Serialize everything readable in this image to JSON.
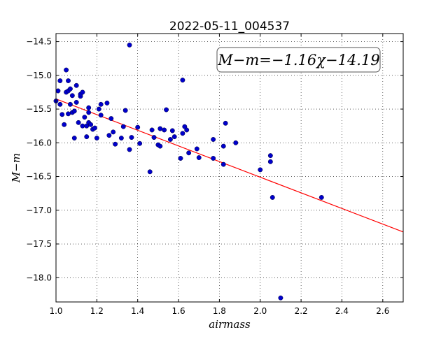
{
  "chart_data": {
    "type": "scatter",
    "title": "2022-05-11_004537",
    "xlabel": "airmass",
    "ylabel": "M−m",
    "xlim": [
      1.0,
      2.7
    ],
    "ylim": [
      -18.36,
      -14.38
    ],
    "y_inverted": true,
    "grid": true,
    "x_ticks": [
      1.0,
      1.2,
      1.4,
      1.6,
      1.8,
      2.0,
      2.2,
      2.4,
      2.6
    ],
    "x_tick_labels": [
      "1.0",
      "1.2",
      "1.4",
      "1.6",
      "1.8",
      "2.0",
      "2.2",
      "2.4",
      "2.6"
    ],
    "y_ticks": [
      -14.5,
      -15.0,
      -15.5,
      -16.0,
      -16.5,
      -17.0,
      -17.5,
      -18.0
    ],
    "y_tick_labels": [
      "−14.5",
      "−15.0",
      "−15.5",
      "−16.0",
      "−16.5",
      "−17.0",
      "−17.5",
      "−18.0"
    ],
    "annotation": "M−m=−1.16χ−14.19",
    "annotation_placement": "top-right",
    "fit": {
      "slope": -1.16,
      "intercept": -14.19,
      "color": "#ff0000"
    },
    "point_color": "#0000cc",
    "points": [
      [
        1.0,
        -15.38
      ],
      [
        1.01,
        -15.23
      ],
      [
        1.02,
        -15.08
      ],
      [
        1.02,
        -15.43
      ],
      [
        1.03,
        -15.58
      ],
      [
        1.04,
        -15.73
      ],
      [
        1.05,
        -14.92
      ],
      [
        1.05,
        -15.25
      ],
      [
        1.06,
        -15.08
      ],
      [
        1.06,
        -15.23
      ],
      [
        1.06,
        -15.57
      ],
      [
        1.07,
        -15.2
      ],
      [
        1.07,
        -15.43
      ],
      [
        1.08,
        -15.3
      ],
      [
        1.08,
        -15.55
      ],
      [
        1.09,
        -15.53
      ],
      [
        1.09,
        -15.93
      ],
      [
        1.1,
        -15.15
      ],
      [
        1.1,
        -15.4
      ],
      [
        1.11,
        -15.7
      ],
      [
        1.12,
        -15.31
      ],
      [
        1.12,
        -15.28
      ],
      [
        1.13,
        -15.25
      ],
      [
        1.13,
        -15.75
      ],
      [
        1.14,
        -15.62
      ],
      [
        1.15,
        -15.75
      ],
      [
        1.15,
        -15.91
      ],
      [
        1.16,
        -15.48
      ],
      [
        1.16,
        -15.55
      ],
      [
        1.16,
        -15.7
      ],
      [
        1.17,
        -15.73
      ],
      [
        1.18,
        -15.8
      ],
      [
        1.19,
        -15.78
      ],
      [
        1.2,
        -15.93
      ],
      [
        1.21,
        -15.5
      ],
      [
        1.22,
        -15.43
      ],
      [
        1.22,
        -15.59
      ],
      [
        1.25,
        -15.41
      ],
      [
        1.26,
        -15.89
      ],
      [
        1.27,
        -15.64
      ],
      [
        1.28,
        -15.84
      ],
      [
        1.29,
        -16.02
      ],
      [
        1.32,
        -15.93
      ],
      [
        1.33,
        -15.76
      ],
      [
        1.34,
        -15.52
      ],
      [
        1.36,
        -14.55
      ],
      [
        1.36,
        -16.1
      ],
      [
        1.37,
        -15.92
      ],
      [
        1.4,
        -15.77
      ],
      [
        1.41,
        -16.01
      ],
      [
        1.46,
        -16.43
      ],
      [
        1.47,
        -15.81
      ],
      [
        1.48,
        -15.92
      ],
      [
        1.5,
        -16.03
      ],
      [
        1.51,
        -15.79
      ],
      [
        1.51,
        -16.05
      ],
      [
        1.53,
        -15.81
      ],
      [
        1.54,
        -15.51
      ],
      [
        1.56,
        -15.95
      ],
      [
        1.57,
        -15.82
      ],
      [
        1.58,
        -15.91
      ],
      [
        1.61,
        -16.23
      ],
      [
        1.62,
        -15.86
      ],
      [
        1.62,
        -15.07
      ],
      [
        1.63,
        -15.76
      ],
      [
        1.64,
        -15.81
      ],
      [
        1.65,
        -16.15
      ],
      [
        1.69,
        -16.09
      ],
      [
        1.7,
        -16.22
      ],
      [
        1.77,
        -15.95
      ],
      [
        1.77,
        -16.23
      ],
      [
        1.82,
        -16.05
      ],
      [
        1.82,
        -16.32
      ],
      [
        1.83,
        -15.71
      ],
      [
        1.88,
        -16.0
      ],
      [
        2.0,
        -16.4
      ],
      [
        2.05,
        -16.19
      ],
      [
        2.05,
        -16.28
      ],
      [
        2.06,
        -16.81
      ],
      [
        2.1,
        -18.3
      ],
      [
        2.3,
        -16.81
      ]
    ]
  }
}
